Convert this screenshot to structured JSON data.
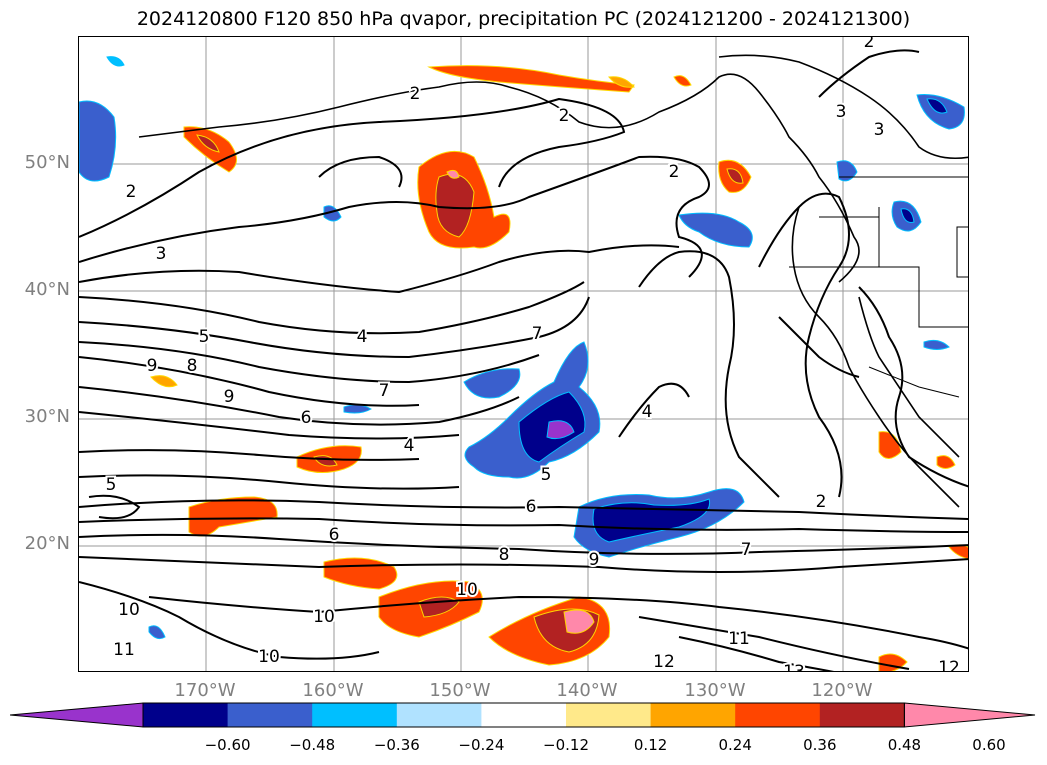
{
  "title": "2024120800 F120 850 hPa qvapor, precipitation PC (2024121200 - 2024121300)",
  "lat_labels": [
    "50°N",
    "40°N",
    "30°N",
    "20°N"
  ],
  "lon_labels": [
    "170°W",
    "160°W",
    "150°W",
    "140°W",
    "130°W",
    "120°W"
  ],
  "colorbar": {
    "ticks": [
      "−0.60",
      "−0.48",
      "−0.36",
      "−0.24",
      "−0.12",
      "0.12",
      "0.24",
      "0.36",
      "0.48",
      "0.60"
    ],
    "colors": [
      "#9933cc",
      "#00008b",
      "#3a5fcd",
      "#00bfff",
      "#b0e2ff",
      "#ffffff",
      "#ffe98a",
      "#ffa500",
      "#ff4500",
      "#b22222",
      "#ff88aa"
    ]
  },
  "contour_labels": [
    "2",
    "2",
    "2",
    "2",
    "2",
    "2",
    "3",
    "3",
    "3",
    "4",
    "4",
    "4",
    "5",
    "5",
    "5",
    "6",
    "6",
    "6",
    "7",
    "7",
    "7",
    "8",
    "8",
    "9",
    "9",
    "9",
    "10",
    "10",
    "10",
    "10",
    "11",
    "11",
    "12",
    "12",
    "13"
  ]
}
